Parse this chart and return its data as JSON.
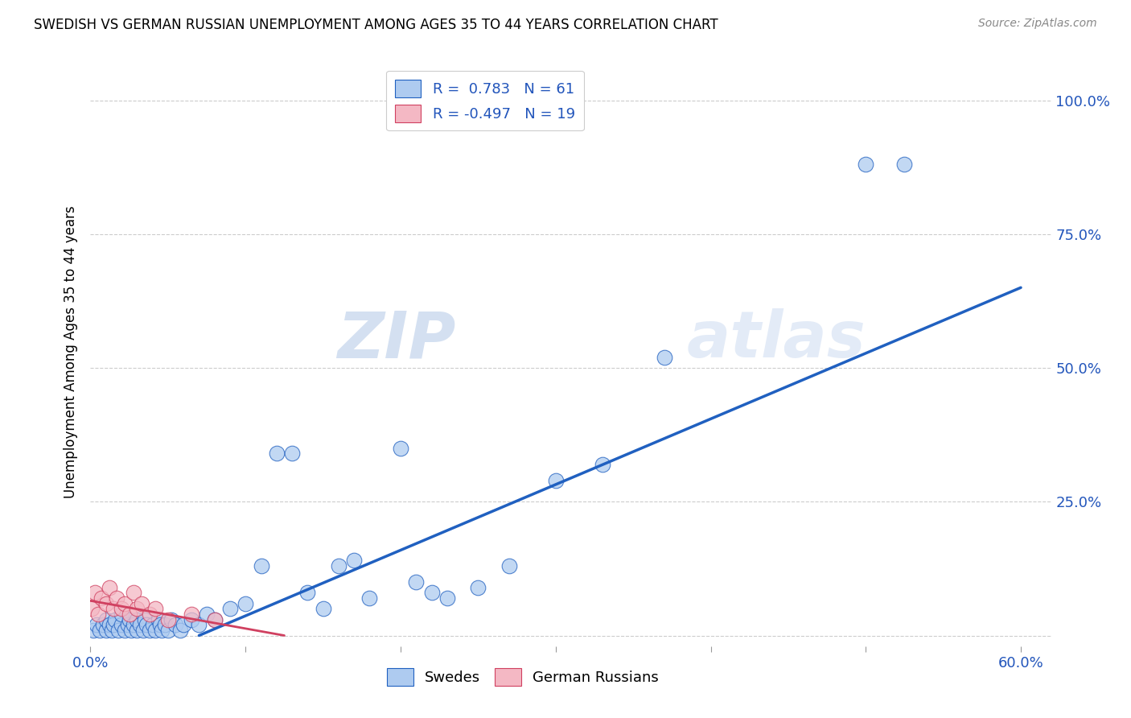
{
  "title": "SWEDISH VS GERMAN RUSSIAN UNEMPLOYMENT AMONG AGES 35 TO 44 YEARS CORRELATION CHART",
  "source": "Source: ZipAtlas.com",
  "ylabel": "Unemployment Among Ages 35 to 44 years",
  "xlim": [
    0.0,
    0.62
  ],
  "ylim": [
    -0.02,
    1.08
  ],
  "yticks": [
    0.0,
    0.25,
    0.5,
    0.75,
    1.0
  ],
  "ytick_labels": [
    "",
    "25.0%",
    "50.0%",
    "75.0%",
    "100.0%"
  ],
  "xticks": [
    0.0,
    0.1,
    0.2,
    0.3,
    0.4,
    0.5,
    0.6
  ],
  "xtick_labels": [
    "0.0%",
    "",
    "",
    "",
    "",
    "",
    "60.0%"
  ],
  "blue_R": 0.783,
  "blue_N": 61,
  "pink_R": -0.497,
  "pink_N": 19,
  "blue_color": "#aecbf0",
  "pink_color": "#f4b8c4",
  "line_blue": "#2060c0",
  "line_pink": "#d04060",
  "watermark_zip": "ZIP",
  "watermark_atlas": "atlas",
  "blue_scatter_x": [
    0.002,
    0.004,
    0.006,
    0.008,
    0.01,
    0.01,
    0.012,
    0.014,
    0.015,
    0.016,
    0.018,
    0.02,
    0.02,
    0.022,
    0.024,
    0.025,
    0.026,
    0.028,
    0.03,
    0.03,
    0.032,
    0.034,
    0.035,
    0.036,
    0.038,
    0.04,
    0.042,
    0.044,
    0.045,
    0.046,
    0.048,
    0.05,
    0.052,
    0.055,
    0.058,
    0.06,
    0.065,
    0.07,
    0.075,
    0.08,
    0.09,
    0.1,
    0.11,
    0.12,
    0.13,
    0.14,
    0.15,
    0.16,
    0.17,
    0.18,
    0.2,
    0.21,
    0.22,
    0.23,
    0.25,
    0.27,
    0.3,
    0.33,
    0.37,
    0.5,
    0.525
  ],
  "blue_scatter_y": [
    0.01,
    0.02,
    0.01,
    0.02,
    0.01,
    0.03,
    0.02,
    0.01,
    0.02,
    0.03,
    0.01,
    0.02,
    0.04,
    0.01,
    0.02,
    0.03,
    0.01,
    0.02,
    0.01,
    0.03,
    0.02,
    0.01,
    0.03,
    0.02,
    0.01,
    0.02,
    0.01,
    0.03,
    0.02,
    0.01,
    0.02,
    0.01,
    0.03,
    0.02,
    0.01,
    0.02,
    0.03,
    0.02,
    0.04,
    0.03,
    0.05,
    0.06,
    0.13,
    0.34,
    0.34,
    0.08,
    0.05,
    0.13,
    0.14,
    0.07,
    0.35,
    0.1,
    0.08,
    0.07,
    0.09,
    0.13,
    0.29,
    0.32,
    0.52,
    0.88,
    0.88
  ],
  "pink_scatter_x": [
    0.001,
    0.003,
    0.005,
    0.007,
    0.01,
    0.012,
    0.015,
    0.017,
    0.02,
    0.022,
    0.025,
    0.028,
    0.03,
    0.033,
    0.038,
    0.042,
    0.05,
    0.065,
    0.08
  ],
  "pink_scatter_y": [
    0.05,
    0.08,
    0.04,
    0.07,
    0.06,
    0.09,
    0.05,
    0.07,
    0.05,
    0.06,
    0.04,
    0.08,
    0.05,
    0.06,
    0.04,
    0.05,
    0.03,
    0.04,
    0.03
  ],
  "blue_line_x": [
    0.07,
    0.6
  ],
  "blue_line_y": [
    0.0,
    0.65
  ],
  "pink_line_x": [
    0.0,
    0.125
  ],
  "pink_line_y": [
    0.065,
    0.0
  ]
}
